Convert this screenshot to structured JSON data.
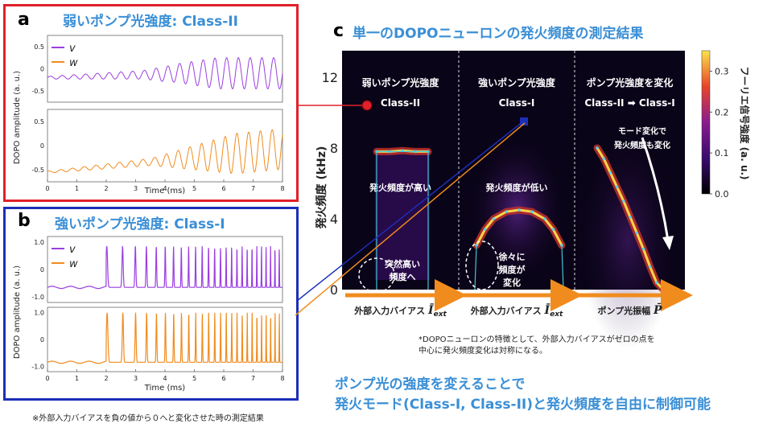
{
  "panel_a": {
    "letter": "a",
    "title": "弱いポンプ光強度: Class-II",
    "border_color": "#e0202a",
    "legend": [
      {
        "symbol": "v",
        "color": "#9b3fe0"
      },
      {
        "symbol": "w",
        "color": "#f08c1e"
      }
    ],
    "ylabel": "DOPO amplitude (a. u.)",
    "xlabel": "Time (ms)",
    "xticks": [
      "0",
      "1",
      "2",
      "3",
      "4",
      "5",
      "6",
      "7",
      "8"
    ],
    "top_yticks": [
      "0.5",
      "0",
      "-0.5"
    ],
    "bottom_yticks": [
      "0.5",
      "0",
      "-0.5"
    ]
  },
  "panel_b": {
    "letter": "b",
    "title": "強いポンプ光強度: Class-I",
    "border_color": "#1c2fb8",
    "legend": [
      {
        "symbol": "v",
        "color": "#9b3fe0"
      },
      {
        "symbol": "w",
        "color": "#f08c1e"
      }
    ],
    "ylabel": "DOPO amplitude (a. u.)",
    "xlabel": "Time (ms)",
    "xticks": [
      "0",
      "1",
      "2",
      "3",
      "4",
      "5",
      "6",
      "7",
      "8"
    ],
    "top_yticks": [
      "1.0",
      "0",
      "-1.0"
    ],
    "bottom_yticks": [
      "1.0",
      "0",
      "-1.0"
    ],
    "footnote": "※外部入力バイアスを負の値から０へと変化させた時の測定結果"
  },
  "panel_c": {
    "letter": "c",
    "title": "単一のDOPOニューロンの発火頻度の測定結果",
    "ylabel": "発火頻度 (kHz)",
    "yticks": [
      "12",
      "8",
      "4",
      "0"
    ],
    "colorbar_label": "フーリエ信号強度 (a. u.)",
    "colorbar_ticks": [
      "0.3",
      "0.2",
      "0.1",
      "0.0"
    ],
    "sections": [
      {
        "title": "弱いポンプ光強度",
        "subtitle": "Class-II",
        "annotation": "発火頻度が高い",
        "axis_label": "外部入力バイアス",
        "axis_symbol": "Ī",
        "axis_sub": "ext"
      },
      {
        "title": "強いポンプ光強度",
        "subtitle": "Class-I",
        "annotation": "発火頻度が低い",
        "axis_label": "外部入力バイアス",
        "axis_symbol": "Ī",
        "axis_sub": "ext"
      },
      {
        "title": "ポンプ光強度を変化",
        "subtitle": "Class-II ➡ Class-I",
        "annotation_line1": "モード変化で",
        "annotation_line2": "発火頻度も変化",
        "axis_label": "ポンプ光振幅",
        "axis_symbol": "P̄",
        "axis_sub": ""
      }
    ],
    "callout1_line1": "突然高い",
    "callout1_line2": "頻度へ",
    "callout2_line1": "徐々に",
    "callout2_line2": "頻度が",
    "callout2_line3": "変化",
    "note_line1": "*DOPOニューロンの特徴として、外部入力バイアスがゼロの点を",
    "note_line2": "中心に発火頻度変化は対称になる。"
  },
  "conclusion": {
    "line1": "ポンプ光の強度を変えることで",
    "line2": "発火モード(Class-I, Class-II)と発火頻度を自由に制御可能"
  },
  "chart_data": [
    {
      "type": "line",
      "panel": "a",
      "xlabel": "Time (ms)",
      "ylabel": "DOPO amplitude (a. u.)",
      "xlim": [
        0,
        8
      ],
      "subplots": [
        {
          "ylim": [
            -0.75,
            0.75
          ],
          "series": [
            {
              "name": "v",
              "description": "slow oscillation growing from ~-0.2 baseline, amplitude rising after ~4 ms up to ~±0.35"
            }
          ]
        },
        {
          "ylim": [
            -0.75,
            0.75
          ],
          "series": [
            {
              "name": "w",
              "description": "baseline ~-0.5 rising; oscillation grows after ~4 ms, peaks ~0.4"
            }
          ]
        }
      ]
    },
    {
      "type": "line",
      "panel": "b",
      "xlabel": "Time (ms)",
      "ylabel": "DOPO amplitude (a. u.)",
      "xlim": [
        0,
        8
      ],
      "subplots": [
        {
          "ylim": [
            -1.2,
            1.2
          ],
          "series": [
            {
              "name": "v",
              "description": "baseline ~-0.7 until ~2 ms, then spikes to ~0.8 with rising frequency"
            }
          ]
        },
        {
          "ylim": [
            -1.2,
            1.2
          ],
          "series": [
            {
              "name": "w",
              "description": "baseline ~-0.8 until ~2 ms, then pulses to ~1.0 with rising frequency"
            }
          ]
        }
      ]
    },
    {
      "type": "heatmap",
      "panel": "c",
      "ylabel": "発火頻度 (kHz)",
      "ylim": [
        0,
        13.5
      ],
      "colorbar_range": [
        0.0,
        0.35
      ],
      "sections": [
        {
          "name": "Class-II",
          "ridge": "flat ~7.8 kHz",
          "points": [
            [
              0.0,
              7.8
            ],
            [
              0.25,
              7.8
            ],
            [
              0.5,
              7.85
            ],
            [
              0.75,
              7.8
            ],
            [
              1.0,
              7.8
            ]
          ]
        },
        {
          "name": "Class-I",
          "ridge": "arch peaking ~4.5 kHz",
          "points": [
            [
              0.0,
              2.5
            ],
            [
              0.1,
              3.4
            ],
            [
              0.2,
              4.0
            ],
            [
              0.35,
              4.4
            ],
            [
              0.5,
              4.5
            ],
            [
              0.65,
              4.4
            ],
            [
              0.8,
              4.0
            ],
            [
              0.9,
              3.4
            ],
            [
              1.0,
              2.5
            ]
          ]
        },
        {
          "name": "Class-II→Class-I",
          "ridge": "decreasing from ~8 kHz to 0",
          "points": [
            [
              0.0,
              8.0
            ],
            [
              0.1,
              7.4
            ],
            [
              0.2,
              6.6
            ],
            [
              0.3,
              5.8
            ],
            [
              0.4,
              5.0
            ],
            [
              0.5,
              4.1
            ],
            [
              0.6,
              3.2
            ],
            [
              0.7,
              2.3
            ],
            [
              0.8,
              1.3
            ],
            [
              0.9,
              0.4
            ],
            [
              1.0,
              0.0
            ]
          ]
        }
      ]
    }
  ]
}
